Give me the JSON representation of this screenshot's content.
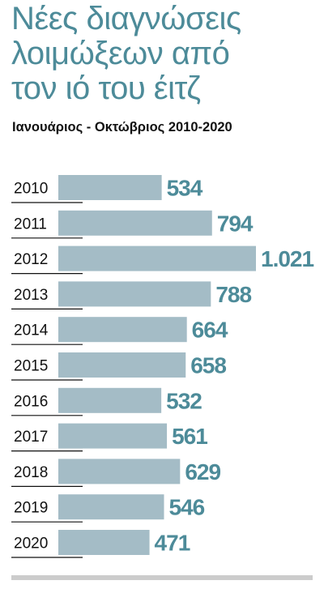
{
  "title_lines": [
    "Νέες διαγνώσεις",
    "λοιμώξεων από",
    "τον ιό του έιτζ"
  ],
  "subtitle": "Ιανουάριος - Οκτώβριος 2010-2020",
  "colors": {
    "title": "#4d8b99",
    "bar": "#a4bcc6",
    "value_label": "#4d8b99",
    "year_label": "#111111",
    "separator": "#111111",
    "bottom_rule": "#cccccc"
  },
  "chart_data": {
    "type": "bar",
    "orientation": "horizontal",
    "title": "Νέες διαγνώσεις λοιμώξεων από τον ιό του έιτζ",
    "subtitle": "Ιανουάριος - Οκτώβριος 2010-2020",
    "categories": [
      "2010",
      "2011",
      "2012",
      "2013",
      "2014",
      "2015",
      "2016",
      "2017",
      "2018",
      "2019",
      "2020"
    ],
    "values": [
      534,
      794,
      1021,
      788,
      664,
      658,
      532,
      561,
      629,
      546,
      471
    ],
    "value_labels": [
      "534",
      "794",
      "1.021",
      "788",
      "664",
      "658",
      "532",
      "561",
      "629",
      "546",
      "471"
    ],
    "xlim": [
      0,
      1021
    ],
    "grid": false,
    "legend": "none"
  }
}
